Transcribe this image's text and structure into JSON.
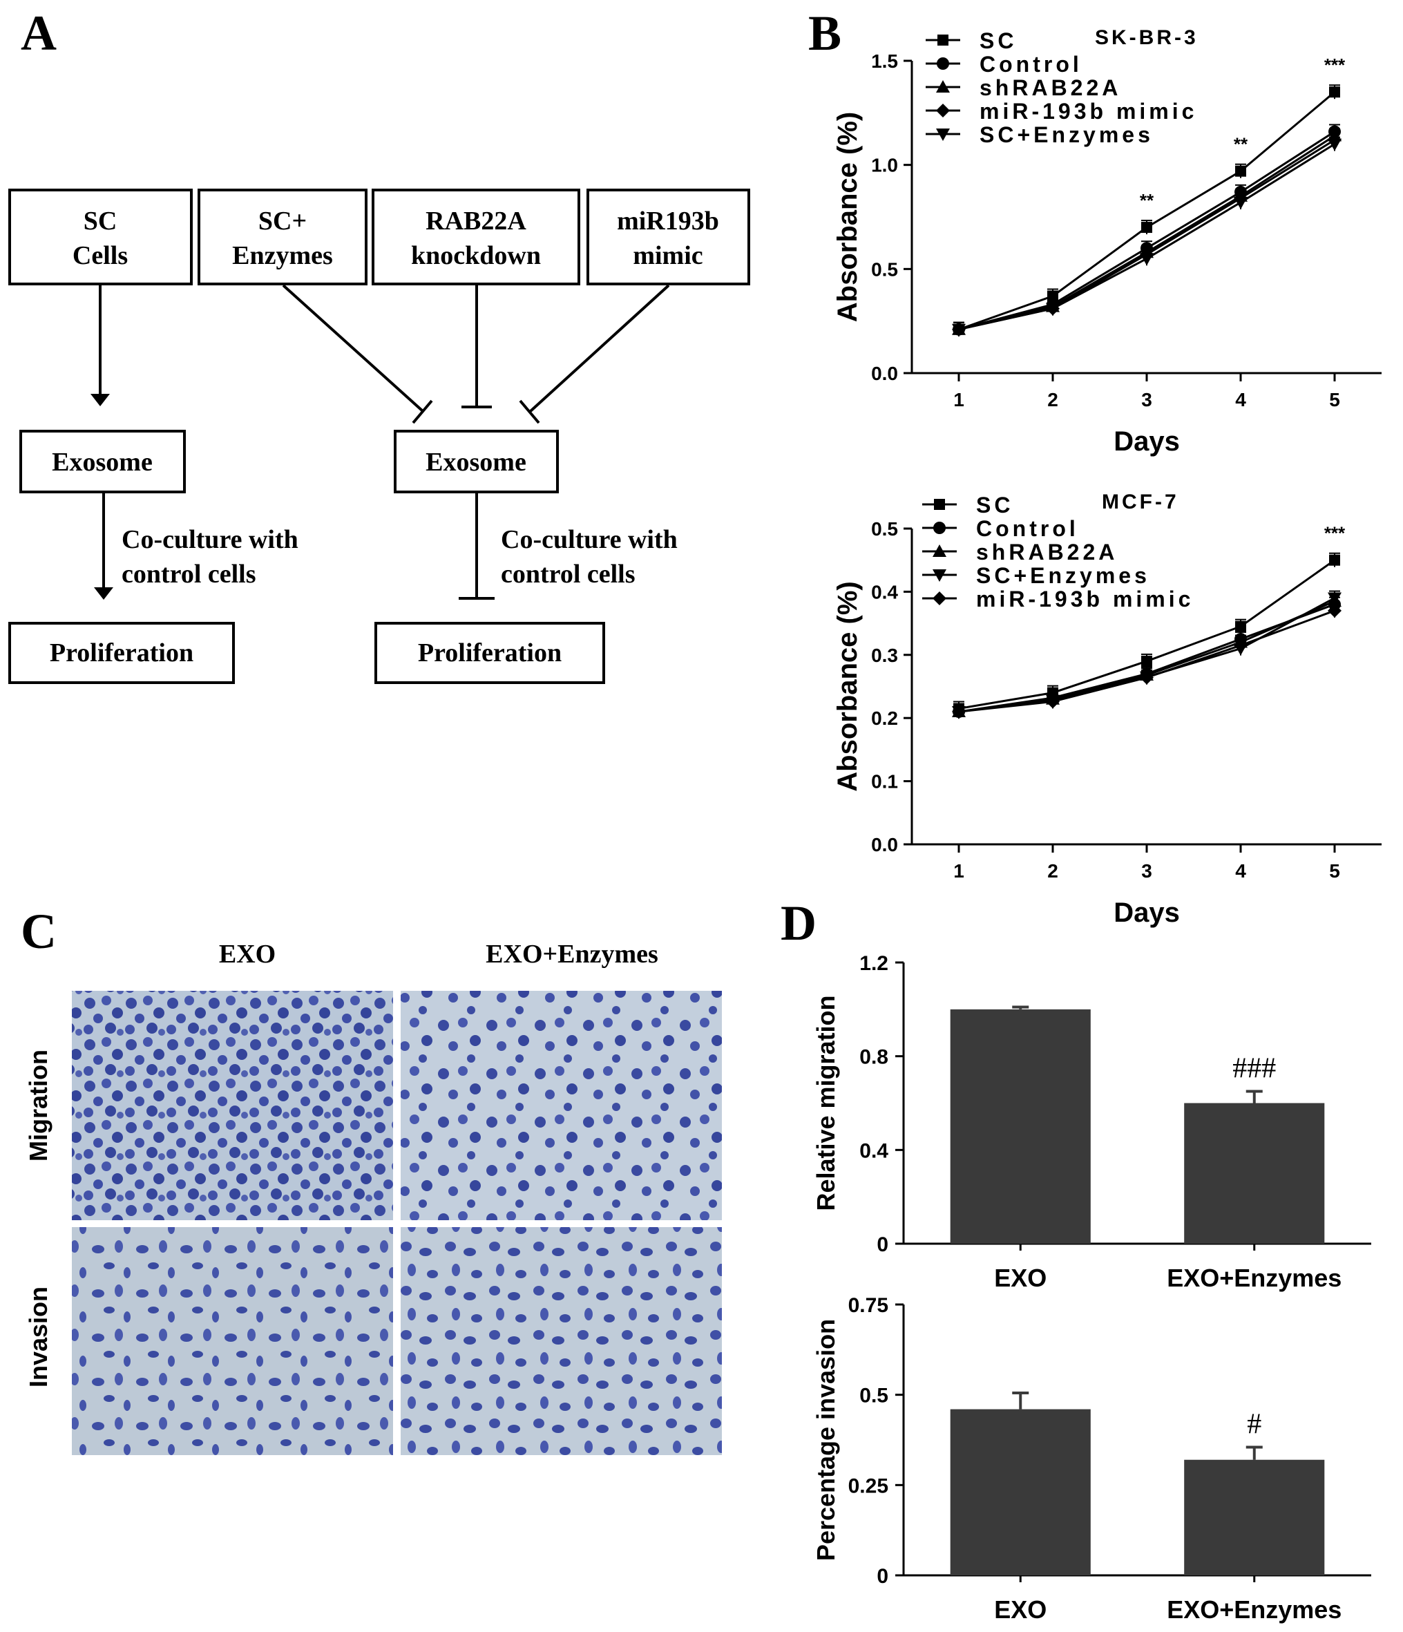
{
  "panels": {
    "a": "A",
    "b": "B",
    "c": "C",
    "d": "D"
  },
  "panel_a": {
    "top_boxes": [
      [
        "SC",
        "Cells"
      ],
      [
        "SC+",
        "Enzymes"
      ],
      [
        "RAB22A",
        "knockdown"
      ],
      [
        "miR193b",
        "mimic"
      ]
    ],
    "exosome": "Exosome",
    "coculture_line1": "Co-culture with",
    "coculture_line2": "control cells",
    "proliferation": "Proliferation"
  },
  "panel_c": {
    "col_titles": [
      "EXO",
      "EXO+Enzymes"
    ],
    "row_titles": [
      "Migration",
      "Invasion"
    ],
    "stain_color": "#3a4aa0",
    "background_color": "#b9c7d8"
  },
  "chart_data": [
    {
      "id": "b-top",
      "type": "line",
      "title": "SK-BR-3",
      "xlabel": "Days",
      "ylabel": "Absorbance (%)",
      "x": [
        1,
        2,
        3,
        4,
        5
      ],
      "xlim": [
        0.5,
        5.5
      ],
      "ylim": [
        0,
        1.5
      ],
      "yticks": [
        "0.0",
        "0.5",
        "1.0",
        "1.5"
      ],
      "legend": "top-left",
      "series": [
        {
          "name": "SC",
          "marker": "square",
          "values": [
            0.21,
            0.37,
            0.7,
            0.97,
            1.35
          ]
        },
        {
          "name": "Control",
          "marker": "circle",
          "values": [
            0.21,
            0.33,
            0.6,
            0.87,
            1.16
          ]
        },
        {
          "name": "shRAB22A",
          "marker": "triangle-up",
          "values": [
            0.21,
            0.32,
            0.58,
            0.85,
            1.14
          ]
        },
        {
          "name": "miR-193b mimic",
          "marker": "diamond",
          "values": [
            0.21,
            0.31,
            0.57,
            0.84,
            1.12
          ]
        },
        {
          "name": "SC+Enzymes",
          "marker": "triangle-down",
          "values": [
            0.21,
            0.31,
            0.55,
            0.82,
            1.1
          ]
        }
      ],
      "significance": [
        {
          "x": 3,
          "label": "**"
        },
        {
          "x": 4,
          "label": "**"
        },
        {
          "x": 5,
          "label": "***"
        }
      ]
    },
    {
      "id": "b-bottom",
      "type": "line",
      "title": "MCF-7",
      "xlabel": "Days",
      "ylabel": "Absorbance (%)",
      "x": [
        1,
        2,
        3,
        4,
        5
      ],
      "xlim": [
        0.5,
        5.5
      ],
      "ylim": [
        0,
        0.5
      ],
      "yticks": [
        "0.0",
        "0.1",
        "0.2",
        "0.3",
        "0.4",
        "0.5"
      ],
      "legend": "top-left",
      "series": [
        {
          "name": "SC",
          "marker": "square",
          "values": [
            0.215,
            0.24,
            0.29,
            0.345,
            0.45
          ]
        },
        {
          "name": "Control",
          "marker": "circle",
          "values": [
            0.21,
            0.232,
            0.27,
            0.325,
            0.38
          ]
        },
        {
          "name": "shRAB22A",
          "marker": "triangle-up",
          "values": [
            0.21,
            0.23,
            0.268,
            0.32,
            0.385
          ]
        },
        {
          "name": "SC+Enzymes",
          "marker": "triangle-down",
          "values": [
            0.21,
            0.228,
            0.265,
            0.31,
            0.39
          ]
        },
        {
          "name": "miR-193b mimic",
          "marker": "diamond",
          "values": [
            0.21,
            0.226,
            0.264,
            0.315,
            0.37
          ]
        }
      ],
      "significance": [
        {
          "x": 5,
          "label": "***"
        }
      ]
    },
    {
      "id": "d-top",
      "type": "bar",
      "categories": [
        "EXO",
        "EXO+Enzymes"
      ],
      "values": [
        1.0,
        0.6
      ],
      "errors": [
        0.01,
        0.05
      ],
      "ylabel": "Relative migration",
      "ylim": [
        0,
        1.2
      ],
      "yticks": [
        "0",
        "0.4",
        "0.8",
        "1.2"
      ],
      "bar_color": "#3a3a3a",
      "annotations": [
        "",
        "###"
      ]
    },
    {
      "id": "d-bottom",
      "type": "bar",
      "categories": [
        "EXO",
        "EXO+Enzymes"
      ],
      "values": [
        0.46,
        0.32
      ],
      "errors": [
        0.045,
        0.035
      ],
      "ylabel": "Percentage invasion",
      "ylim": [
        0,
        0.75
      ],
      "yticks": [
        "0",
        "0.25",
        "0.5",
        "0.75"
      ],
      "bar_color": "#3a3a3a",
      "annotations": [
        "",
        "#"
      ]
    }
  ]
}
